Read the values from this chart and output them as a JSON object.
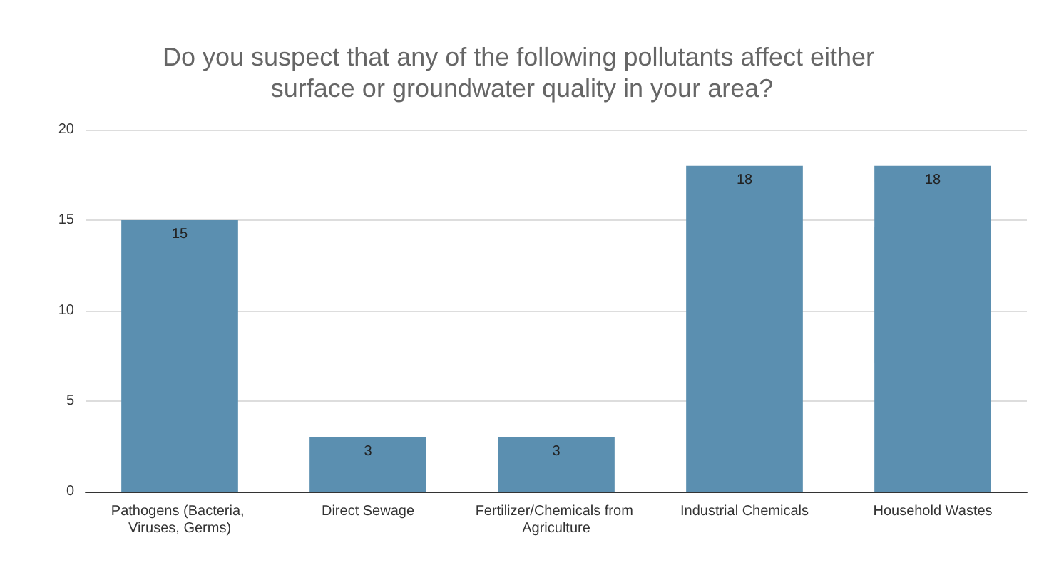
{
  "chart_data": {
    "type": "bar",
    "title": "Do you suspect that any of the following pollutants affect either surface or groundwater quality in your area?",
    "categories": [
      "Pathogens (Bacteria, Viruses, Germs)",
      "Direct Sewage",
      "Fertilizer/Chemicals from Agriculture",
      "Industrial Chemicals",
      "Household Wastes"
    ],
    "values": [
      15,
      3,
      3,
      18,
      18
    ],
    "color": "#5b8fb0",
    "ylim": [
      0,
      20
    ],
    "yticks": [
      0,
      5,
      10,
      15,
      20
    ],
    "grid": "y",
    "data_labels": true
  }
}
